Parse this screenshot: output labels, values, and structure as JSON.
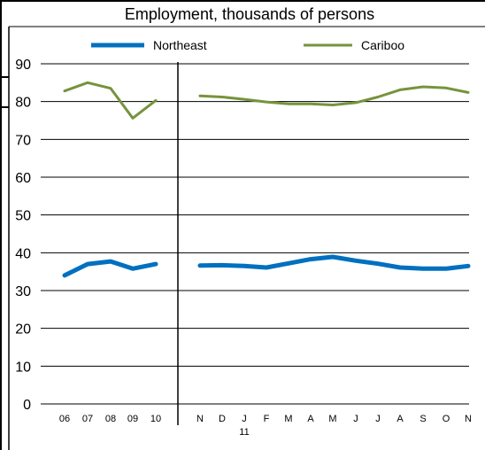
{
  "chart_data": {
    "type": "line",
    "title": "Employment, thousands of persons",
    "xlabel": "",
    "ylabel": "",
    "ylim": [
      0,
      90
    ],
    "yticks": [
      "0",
      "10",
      "20",
      "30",
      "40",
      "50",
      "60",
      "70",
      "80",
      "90"
    ],
    "grid": true,
    "legend_position": "top",
    "categories": [
      "06",
      "07",
      "08",
      "09",
      "10",
      "N",
      "D",
      "J",
      "F",
      "M",
      "A",
      "M",
      "J",
      "J",
      "A",
      "S",
      "O",
      "N"
    ],
    "year_label": "11",
    "series": [
      {
        "name": "Northeast",
        "color": "#0070c0",
        "segments": [
          [
            34.0,
            37.0,
            37.7,
            35.8,
            37.0
          ],
          [
            36.6,
            36.7,
            36.5,
            36.1,
            37.2,
            38.3,
            38.9,
            37.9,
            37.1,
            36.1,
            35.8,
            35.8,
            36.5
          ]
        ]
      },
      {
        "name": "Cariboo",
        "color": "#77933c",
        "segments": [
          [
            82.8,
            85.0,
            83.5,
            75.6,
            80.3
          ],
          [
            81.5,
            81.2,
            80.6,
            79.9,
            79.4,
            79.4,
            79.1,
            79.7,
            81.2,
            83.1,
            83.9,
            83.6,
            82.4
          ]
        ]
      }
    ]
  }
}
